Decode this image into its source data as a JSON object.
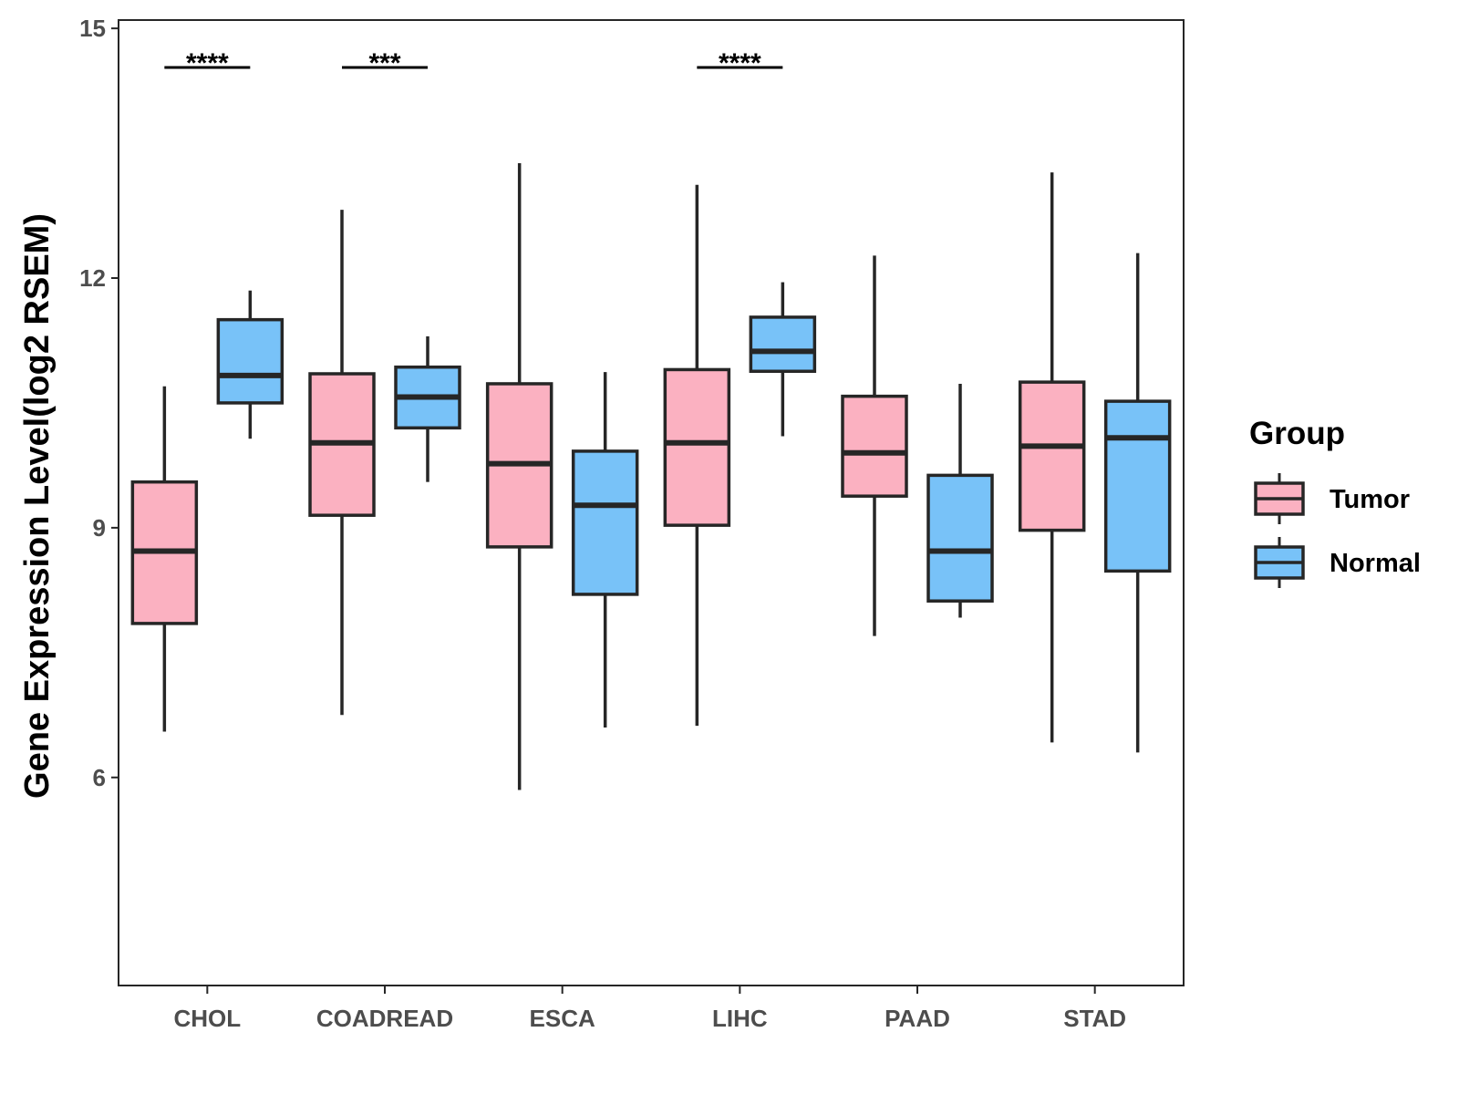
{
  "chart_data": {
    "type": "boxplot",
    "title": "",
    "xlabel": "",
    "ylabel": "Gene Expression Level(log2 RSEM)",
    "ylim": [
      3.5,
      15.1
    ],
    "yticks": [
      6,
      9,
      12,
      15
    ],
    "grid": false,
    "legend": {
      "title": "Group",
      "position": "right",
      "entries": [
        "Tumor",
        "Normal"
      ]
    },
    "colors": {
      "Tumor": "#fbb1c1",
      "Normal": "#78c2f8",
      "outline": "#262626"
    },
    "categories": [
      "CHOL",
      "COADREAD",
      "ESCA",
      "LIHC",
      "PAAD",
      "STAD"
    ],
    "series": [
      {
        "name": "Tumor",
        "boxes": [
          {
            "whisker_low": 6.55,
            "q1": 7.85,
            "median": 8.72,
            "q3": 9.55,
            "whisker_high": 10.7
          },
          {
            "whisker_low": 6.75,
            "q1": 9.15,
            "median": 10.02,
            "q3": 10.85,
            "whisker_high": 12.82
          },
          {
            "whisker_low": 5.85,
            "q1": 8.77,
            "median": 9.77,
            "q3": 10.73,
            "whisker_high": 13.38
          },
          {
            "whisker_low": 6.62,
            "q1": 9.03,
            "median": 10.02,
            "q3": 10.9,
            "whisker_high": 13.12
          },
          {
            "whisker_low": 7.7,
            "q1": 9.38,
            "median": 9.9,
            "q3": 10.58,
            "whisker_high": 12.27
          },
          {
            "whisker_low": 6.42,
            "q1": 8.97,
            "median": 9.98,
            "q3": 10.75,
            "whisker_high": 13.27
          }
        ]
      },
      {
        "name": "Normal",
        "boxes": [
          {
            "whisker_low": 10.07,
            "q1": 10.5,
            "median": 10.83,
            "q3": 11.5,
            "whisker_high": 11.85
          },
          {
            "whisker_low": 9.55,
            "q1": 10.2,
            "median": 10.57,
            "q3": 10.93,
            "whisker_high": 11.3
          },
          {
            "whisker_low": 6.6,
            "q1": 8.2,
            "median": 9.27,
            "q3": 9.92,
            "whisker_high": 10.87
          },
          {
            "whisker_low": 10.1,
            "q1": 10.88,
            "median": 11.12,
            "q3": 11.53,
            "whisker_high": 11.95
          },
          {
            "whisker_low": 7.92,
            "q1": 8.12,
            "median": 8.72,
            "q3": 9.63,
            "whisker_high": 10.73
          },
          {
            "whisker_low": 6.3,
            "q1": 8.48,
            "median": 10.08,
            "q3": 10.52,
            "whisker_high": 12.3
          }
        ]
      }
    ],
    "significance": [
      {
        "category": "CHOL",
        "label": "****"
      },
      {
        "category": "COADREAD",
        "label": "***"
      },
      {
        "category": "LIHC",
        "label": "****"
      }
    ]
  }
}
